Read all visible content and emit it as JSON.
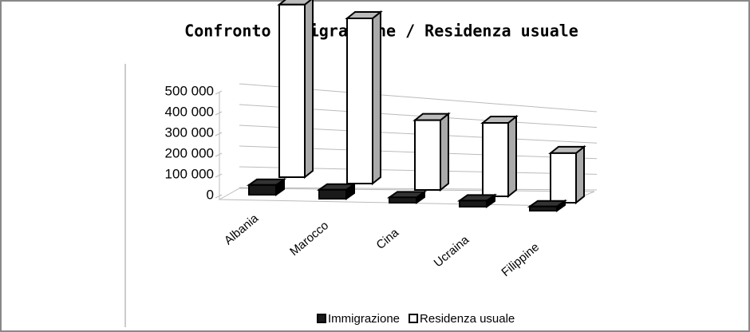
{
  "chart_data": {
    "type": "bar3d",
    "title": "Confronto Immigrazione / Residenza usuale",
    "categories": [
      "Albania",
      "Marocco",
      "Cina",
      "Ucraina",
      "Filippine"
    ],
    "series": [
      {
        "name": "Immigrazione",
        "color": "#1a1a1a",
        "values": [
          20000,
          18000,
          8000,
          10000,
          5000
        ]
      },
      {
        "name": "Residenza usuale",
        "color": "#ffffff",
        "values": [
          470000,
          450000,
          190000,
          200000,
          135000
        ]
      }
    ],
    "ylim": [
      0,
      500000
    ],
    "yticks": [
      0,
      {
        "value": 100000,
        "label": "100 000"
      },
      {
        "value": 200000,
        "label": "200 000"
      },
      {
        "value": 300000,
        "label": "300 000"
      },
      {
        "value": 400000,
        "label": "400 000"
      },
      {
        "value": 500000,
        "label": "500 000"
      }
    ],
    "grid": true,
    "legend": "bottom"
  }
}
